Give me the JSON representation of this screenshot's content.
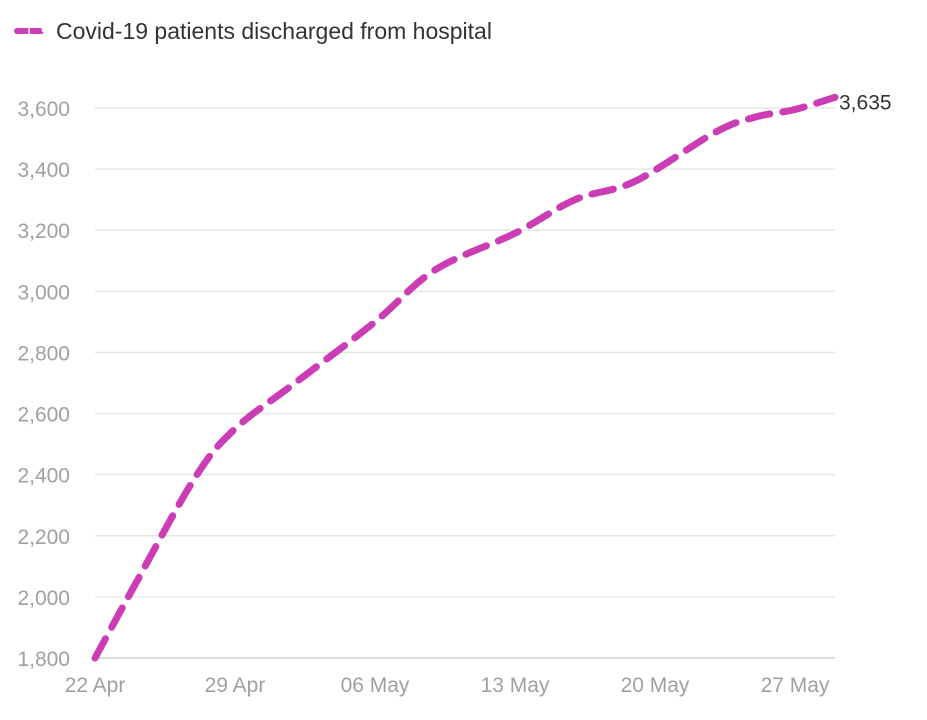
{
  "legend": {
    "label": "Covid-19 patients discharged from hospital",
    "color": "#cc3cb4"
  },
  "chart_data": {
    "type": "line",
    "x_ticks": [
      "22 Apr",
      "29 Apr",
      "06 May",
      "13 May",
      "20 May",
      "27 May"
    ],
    "x_start": "2020-04-22",
    "x_end": "2020-05-29",
    "y_ticks": [
      1800,
      2000,
      2200,
      2400,
      2600,
      2800,
      3000,
      3200,
      3400,
      3600
    ],
    "ylim": [
      1800,
      3600
    ],
    "grid": true,
    "series": [
      {
        "name": "Covid-19 patients discharged from hospital",
        "color": "#cc3cb4",
        "style": "dashed",
        "points": [
          [
            "2020-04-22",
            1800
          ],
          [
            "2020-04-24",
            2040
          ],
          [
            "2020-04-27",
            2390
          ],
          [
            "2020-04-29",
            2550
          ],
          [
            "2020-05-02",
            2700
          ],
          [
            "2020-05-06",
            2900
          ],
          [
            "2020-05-09",
            3070
          ],
          [
            "2020-05-13",
            3190
          ],
          [
            "2020-05-16",
            3300
          ],
          [
            "2020-05-19",
            3360
          ],
          [
            "2020-05-23",
            3520
          ],
          [
            "2020-05-25",
            3570
          ],
          [
            "2020-05-27",
            3595
          ],
          [
            "2020-05-29",
            3635
          ]
        ],
        "end_label": "3,635"
      }
    ]
  }
}
